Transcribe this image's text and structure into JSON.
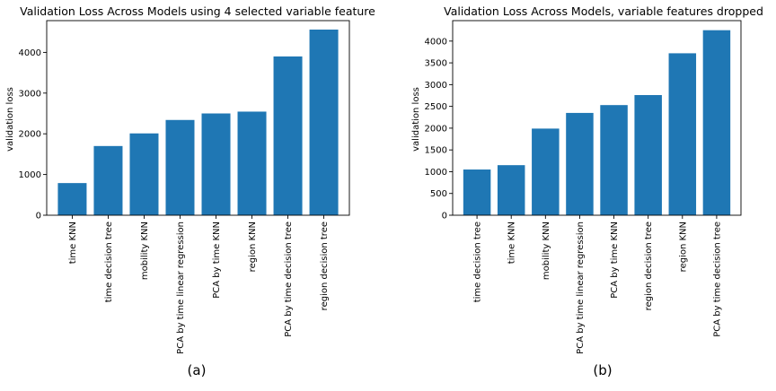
{
  "chart_data": [
    {
      "type": "bar",
      "title": "Validation Loss Across Models using 4 selected variable feature",
      "xlabel": "",
      "ylabel": "validation loss",
      "caption": "(a)",
      "color": "#1f77b4",
      "categories": [
        "time KNN",
        "time decision tree",
        "mobility KNN",
        "PCA by time linear regression",
        "PCA by time KNN",
        "region KNN",
        "PCA by time decision tree",
        "region decision tree"
      ],
      "values": [
        790,
        1700,
        2010,
        2340,
        2500,
        2545,
        3900,
        4560
      ],
      "ylim": [
        0,
        4780
      ],
      "yticks": [
        0,
        1000,
        2000,
        3000,
        4000
      ]
    },
    {
      "type": "bar",
      "title": "Validation Loss Across Models, variable features dropped",
      "xlabel": "",
      "ylabel": "validation loss",
      "caption": "(b)",
      "color": "#1f77b4",
      "categories": [
        "time decision tree",
        "time KNN",
        "mobility KNN",
        "PCA by time linear regression",
        "PCA by time KNN",
        "region decision tree",
        "region KNN",
        "PCA by time decision tree"
      ],
      "values": [
        1050,
        1150,
        1990,
        2350,
        2530,
        2760,
        3720,
        4250
      ],
      "ylim": [
        0,
        4470
      ],
      "yticks": [
        0,
        500,
        1000,
        1500,
        2000,
        2500,
        3000,
        3500,
        4000
      ]
    }
  ]
}
